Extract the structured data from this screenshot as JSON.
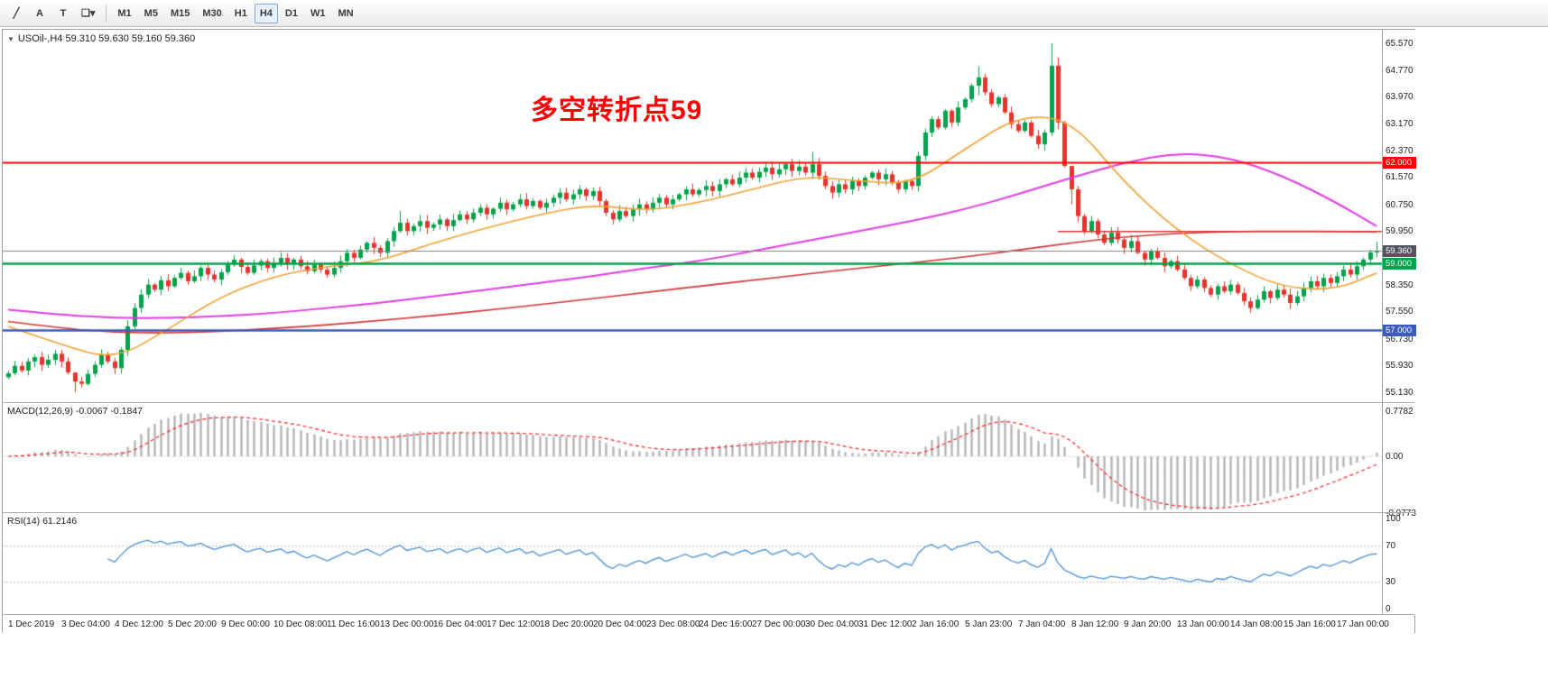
{
  "window": {
    "collapse_glyph": "▼"
  },
  "toolbar": {
    "tools": [
      {
        "name": "trendline-tool-icon",
        "glyph": "╱"
      },
      {
        "name": "arrow-text-tool-icon",
        "glyph": "A"
      },
      {
        "name": "text-label-tool-icon",
        "glyph": "T"
      },
      {
        "name": "shapes-dropdown-icon",
        "glyph": "❏▾"
      }
    ],
    "timeframes": [
      "M1",
      "M5",
      "M15",
      "M30",
      "H1",
      "H4",
      "D1",
      "W1",
      "MN"
    ],
    "active_timeframe": "H4"
  },
  "price_scale": {
    "ticks": [
      {
        "label": "65.570",
        "value": 65.57
      },
      {
        "label": "64.770",
        "value": 64.77
      },
      {
        "label": "63.970",
        "value": 63.97
      },
      {
        "label": "63.170",
        "value": 63.17
      },
      {
        "label": "62.370",
        "value": 62.37
      },
      {
        "label": "61.570",
        "value": 61.57
      },
      {
        "label": "60.750",
        "value": 60.75
      },
      {
        "label": "59.950",
        "value": 59.95
      },
      {
        "label": "58.350",
        "value": 58.35
      },
      {
        "label": "57.550",
        "value": 57.55
      },
      {
        "label": "56.730",
        "value": 56.73
      },
      {
        "label": "55.930",
        "value": 55.93
      },
      {
        "label": "55.130",
        "value": 55.13
      }
    ],
    "badges": [
      {
        "label": "62.000",
        "value": 62.0,
        "color": "#fe0000"
      },
      {
        "label": "59.360",
        "value": 59.36,
        "color": "#50555e"
      },
      {
        "label": "59.000",
        "value": 59.0,
        "color": "#00a24a"
      },
      {
        "label": "57.000",
        "value": 57.0,
        "color": "#3c5bc0"
      }
    ]
  },
  "colors": {
    "candle_up": "#00a24a",
    "candle_down": "#e8332c",
    "ma_fast": "#f0a232",
    "ma_mid": "#e13ce1",
    "ma_slow": "#d23433",
    "hline_red": "#fe0000",
    "hline_green": "#00a24a",
    "hline_blue": "#3c5bc0",
    "current_price_line": "#808080",
    "macd_hist": "#b5b5b5",
    "macd_signal": "#fe2020",
    "rsi_line": "#4a8fd5",
    "annotation": "#ff0000"
  },
  "chart_data": {
    "type": "candlestick",
    "symbol": "USOil-",
    "timeframe": "H4",
    "title": "USOil-,H4 59.310 59.630 59.160 59.360",
    "annotation": "多空转折点59",
    "last_bar": {
      "open": 59.31,
      "high": 59.63,
      "low": 59.16,
      "close": 59.36
    },
    "bars_per_time_label": 8,
    "time_labels": [
      "1 Dec 2019",
      "3 Dec 04:00",
      "4 Dec 12:00",
      "5 Dec 20:00",
      "9 Dec 00:00",
      "10 Dec 08:00",
      "11 Dec 16:00",
      "13 Dec 00:00",
      "16 Dec 04:00",
      "17 Dec 12:00",
      "18 Dec 20:00",
      "20 Dec 04:00",
      "23 Dec 08:00",
      "24 Dec 16:00",
      "27 Dec 00:00",
      "30 Dec 04:00",
      "31 Dec 12:00",
      "2 Jan 16:00",
      "5 Jan 23:00",
      "7 Jan 04:00",
      "8 Jan 12:00",
      "9 Jan 20:00",
      "13 Jan 00:00",
      "14 Jan 08:00",
      "15 Jan 16:00",
      "17 Jan 00:00"
    ],
    "closes": [
      55.7,
      55.92,
      55.78,
      56.05,
      56.18,
      55.95,
      56.1,
      56.28,
      56.05,
      55.72,
      55.45,
      55.38,
      55.68,
      55.95,
      56.25,
      56.05,
      55.85,
      56.4,
      57.1,
      57.65,
      58.05,
      58.35,
      58.2,
      58.48,
      58.3,
      58.55,
      58.7,
      58.45,
      58.6,
      58.85,
      58.65,
      58.5,
      58.72,
      58.95,
      59.1,
      58.88,
      58.7,
      58.92,
      59.05,
      58.85,
      59.0,
      59.15,
      58.95,
      59.1,
      58.9,
      58.75,
      58.95,
      58.8,
      58.65,
      58.85,
      59.05,
      59.3,
      59.15,
      59.4,
      59.6,
      59.45,
      59.3,
      59.65,
      59.95,
      60.2,
      59.95,
      60.1,
      60.25,
      60.05,
      60.15,
      60.3,
      60.1,
      60.28,
      60.45,
      60.3,
      60.5,
      60.65,
      60.45,
      60.62,
      60.8,
      60.6,
      60.75,
      60.9,
      60.7,
      60.85,
      60.65,
      60.8,
      60.95,
      61.1,
      60.9,
      61.05,
      61.2,
      61.0,
      61.15,
      60.85,
      60.5,
      60.3,
      60.55,
      60.4,
      60.6,
      60.75,
      60.6,
      60.8,
      60.95,
      60.75,
      60.9,
      61.05,
      61.2,
      61.05,
      61.18,
      61.3,
      61.15,
      61.35,
      61.5,
      61.35,
      61.55,
      61.7,
      61.55,
      61.72,
      61.85,
      61.65,
      61.8,
      61.95,
      61.75,
      61.88,
      61.7,
      61.95,
      61.6,
      61.3,
      61.1,
      61.35,
      61.2,
      61.45,
      61.3,
      61.55,
      61.7,
      61.5,
      61.65,
      61.4,
      61.2,
      61.45,
      61.3,
      62.2,
      62.9,
      63.3,
      63.05,
      63.55,
      63.2,
      63.65,
      63.9,
      64.3,
      64.55,
      64.1,
      63.75,
      63.95,
      63.5,
      63.15,
      62.95,
      63.2,
      62.8,
      62.55,
      62.9,
      64.9,
      63.2,
      61.9,
      61.2,
      60.4,
      59.95,
      60.25,
      59.85,
      59.6,
      59.9,
      59.7,
      59.45,
      59.65,
      59.3,
      59.1,
      59.35,
      59.15,
      58.9,
      59.05,
      58.8,
      58.55,
      58.3,
      58.5,
      58.25,
      58.05,
      58.3,
      58.15,
      58.35,
      58.1,
      57.85,
      57.65,
      57.9,
      58.15,
      57.95,
      58.2,
      58.05,
      57.8,
      58.0,
      58.25,
      58.45,
      58.3,
      58.55,
      58.4,
      58.6,
      58.8,
      58.65,
      58.9,
      59.1,
      59.31,
      59.36
    ],
    "wick_overrides": {
      "10": [
        55.55,
        55.13
      ],
      "59": [
        60.55,
        59.9
      ],
      "121": [
        62.32,
        61.55
      ],
      "146": [
        64.88,
        64.02
      ],
      "157": [
        65.57,
        62.8
      ],
      "158": [
        65.15,
        63.0
      ],
      "160": [
        61.55,
        60.75
      ],
      "206": [
        59.63,
        59.16
      ]
    },
    "price_levels": {
      "resistance_red": 62.0,
      "pivot_green": 59.0,
      "support_blue": 57.0,
      "current": 59.36,
      "red_segment": 59.95,
      "red_segment_from_bar": 158
    },
    "moving_averages": {
      "bars": [
        0,
        8,
        16,
        24,
        32,
        40,
        48,
        56,
        64,
        72,
        80,
        88,
        96,
        104,
        112,
        120,
        128,
        136,
        144,
        152,
        160,
        168,
        176,
        184,
        192,
        200,
        206
      ],
      "series": [
        {
          "name": "fast-ma",
          "color": "#f0a232",
          "width": 1.6,
          "values": [
            57.1,
            56.55,
            56.1,
            57.0,
            58.0,
            58.6,
            58.9,
            59.05,
            59.6,
            60.05,
            60.45,
            60.75,
            60.55,
            60.8,
            61.2,
            61.6,
            61.45,
            61.35,
            62.4,
            63.4,
            63.3,
            61.4,
            59.95,
            58.95,
            58.25,
            58.2,
            58.7
          ]
        },
        {
          "name": "mid-ma",
          "color": "#e13ce1",
          "width": 2,
          "values": [
            57.6,
            57.45,
            57.35,
            57.35,
            57.4,
            57.5,
            57.65,
            57.8,
            58.0,
            58.2,
            58.4,
            58.6,
            58.85,
            59.05,
            59.35,
            59.65,
            59.95,
            60.25,
            60.6,
            61.05,
            61.55,
            62.0,
            62.3,
            62.15,
            61.6,
            60.8,
            60.1
          ]
        },
        {
          "name": "slow-ma",
          "color": "#d23433",
          "width": 1.6,
          "values": [
            57.25,
            57.05,
            56.92,
            56.9,
            56.95,
            57.04,
            57.14,
            57.28,
            57.42,
            57.58,
            57.75,
            57.93,
            58.12,
            58.3,
            58.48,
            58.66,
            58.84,
            59.0,
            59.18,
            59.38,
            59.6,
            59.78,
            59.88,
            59.94,
            59.95,
            59.94,
            59.93
          ]
        }
      ]
    },
    "macd": {
      "label": "MACD(12,26,9) -0.0067 -0.1847",
      "params": [
        12,
        26,
        9
      ],
      "main_value": -0.0067,
      "signal_value": -0.1847,
      "scale_ticks": [
        {
          "label": "0.7782",
          "value": 0.7782
        },
        {
          "label": "0.00",
          "value": 0
        },
        {
          "label": "-0.9773",
          "value": -0.9773
        }
      ]
    },
    "rsi": {
      "label": "RSI(14) 61.2146",
      "period": 14,
      "value": 61.2146,
      "levels": [
        70,
        30
      ],
      "scale_ticks": [
        {
          "label": "100",
          "value": 100
        },
        {
          "label": "70",
          "value": 70
        },
        {
          "label": "30",
          "value": 30
        },
        {
          "label": "0",
          "value": 0
        }
      ]
    }
  }
}
